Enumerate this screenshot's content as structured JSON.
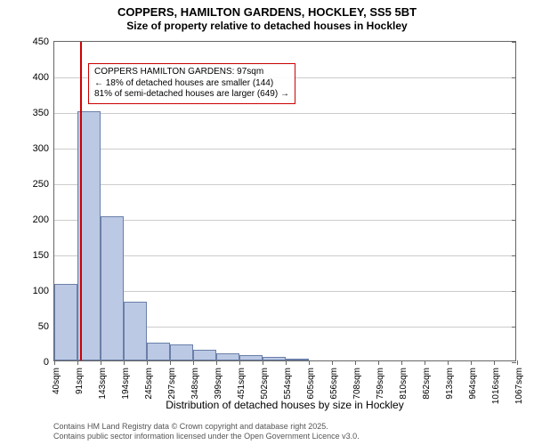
{
  "chart": {
    "type": "histogram",
    "title_main": "COPPERS, HAMILTON GARDENS, HOCKLEY, SS5 5BT",
    "title_sub": "Size of property relative to detached houses in Hockley",
    "y_axis_label": "Number of detached properties",
    "x_axis_label": "Distribution of detached houses by size in Hockley",
    "title_fontsize": 13,
    "subtitle_fontsize": 12,
    "axis_label_fontsize": 12,
    "tick_fontsize": 10,
    "background_color": "#ffffff",
    "border_color": "#666666",
    "grid_color": "#cccccc",
    "bar_fill_color": "#bcc9e4",
    "bar_border_color": "#6a7fa8",
    "reference_line_color": "#cc0000",
    "annotation_border_color": "#cc0000",
    "y_ticks": [
      0,
      50,
      100,
      150,
      200,
      250,
      300,
      350,
      400,
      450
    ],
    "ylim": [
      0,
      450
    ],
    "x_ticks": [
      "40sqm",
      "91sqm",
      "143sqm",
      "194sqm",
      "245sqm",
      "297sqm",
      "348sqm",
      "399sqm",
      "451sqm",
      "502sqm",
      "554sqm",
      "605sqm",
      "656sqm",
      "708sqm",
      "759sqm",
      "810sqm",
      "862sqm",
      "913sqm",
      "964sqm",
      "1016sqm",
      "1067sqm"
    ],
    "x_range": [
      40,
      1067
    ],
    "bars": [
      {
        "x": 40,
        "value": 108
      },
      {
        "x": 91,
        "value": 350
      },
      {
        "x": 143,
        "value": 202
      },
      {
        "x": 194,
        "value": 82
      },
      {
        "x": 245,
        "value": 25
      },
      {
        "x": 297,
        "value": 22
      },
      {
        "x": 348,
        "value": 15
      },
      {
        "x": 399,
        "value": 10
      },
      {
        "x": 451,
        "value": 8
      },
      {
        "x": 502,
        "value": 5
      },
      {
        "x": 554,
        "value": 3
      },
      {
        "x": 605,
        "value": 0
      },
      {
        "x": 656,
        "value": 0
      },
      {
        "x": 708,
        "value": 0
      },
      {
        "x": 759,
        "value": 0
      },
      {
        "x": 810,
        "value": 0
      },
      {
        "x": 862,
        "value": 0
      },
      {
        "x": 913,
        "value": 0
      },
      {
        "x": 964,
        "value": 0
      },
      {
        "x": 1016,
        "value": 0
      }
    ],
    "bar_width_sqm": 51,
    "reference_line_x": 97,
    "annotation": {
      "line1": "COPPERS HAMILTON GARDENS: 97sqm",
      "line2": "← 18% of detached houses are smaller (144)",
      "line3": "81% of semi-detached houses are larger (649) →",
      "x_sqm": 115,
      "y_value": 420
    },
    "footer_line1": "Contains HM Land Registry data © Crown copyright and database right 2025.",
    "footer_line2": "Contains public sector information licensed under the Open Government Licence v3.0."
  }
}
